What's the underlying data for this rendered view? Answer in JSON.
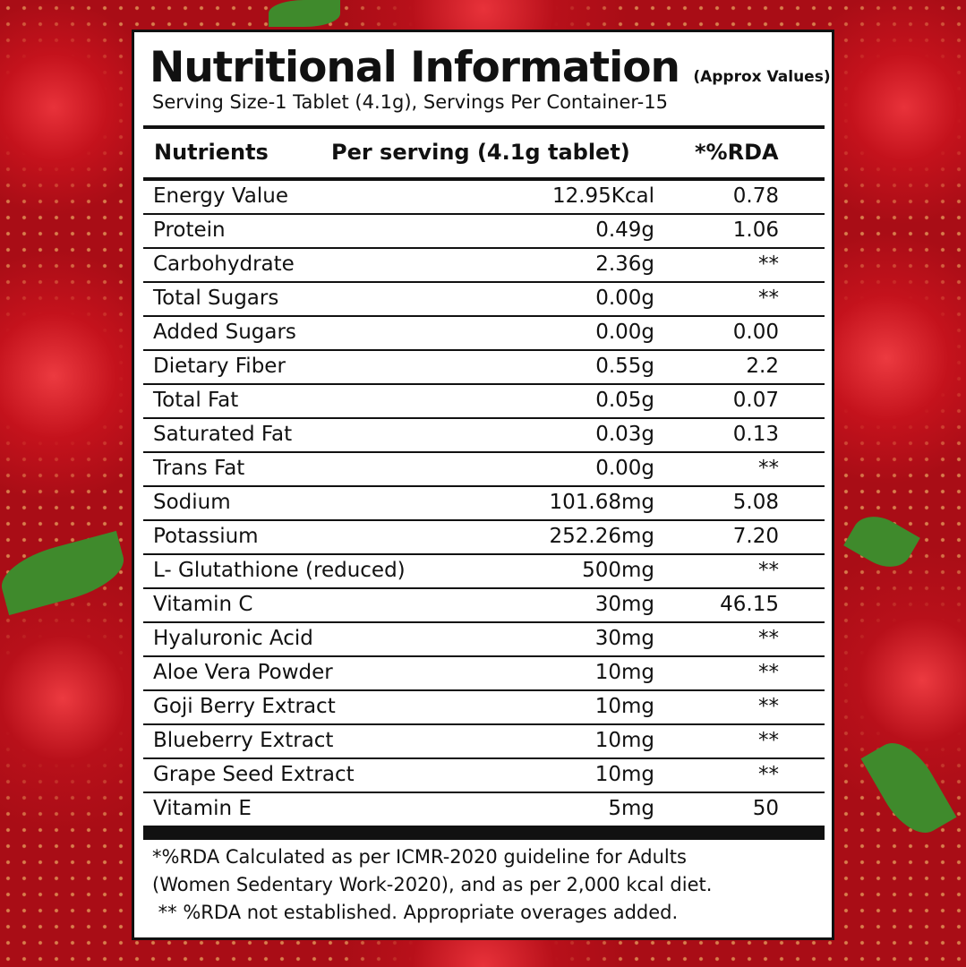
{
  "title": "Nutritional Information",
  "title_note": "(Approx Values)",
  "serving_info": "Serving Size-1 Tablet (4.1g), Servings Per Container-15",
  "columns": {
    "nutrient": "Nutrients",
    "per_serving": "Per serving (4.1g tablet)",
    "rda": "*%RDA"
  },
  "rows": [
    {
      "nutrient": "Energy Value",
      "per_serving": "12.95Kcal",
      "rda": "0.78"
    },
    {
      "nutrient": "Protein",
      "per_serving": "0.49g",
      "rda": "1.06"
    },
    {
      "nutrient": "Carbohydrate",
      "per_serving": "2.36g",
      "rda": "**"
    },
    {
      "nutrient": "Total Sugars",
      "per_serving": "0.00g",
      "rda": "**"
    },
    {
      "nutrient": "Added Sugars",
      "per_serving": "0.00g",
      "rda": "0.00"
    },
    {
      "nutrient": "Dietary Fiber",
      "per_serving": "0.55g",
      "rda": "2.2"
    },
    {
      "nutrient": "Total Fat",
      "per_serving": "0.05g",
      "rda": "0.07"
    },
    {
      "nutrient": "Saturated Fat",
      "per_serving": "0.03g",
      "rda": "0.13"
    },
    {
      "nutrient": "Trans Fat",
      "per_serving": "0.00g",
      "rda": "**"
    },
    {
      "nutrient": "Sodium",
      "per_serving": "101.68mg",
      "rda": "5.08"
    },
    {
      "nutrient": "Potassium",
      "per_serving": "252.26mg",
      "rda": "7.20"
    },
    {
      "nutrient": "L- Glutathione (reduced)",
      "per_serving": "500mg",
      "rda": "**"
    },
    {
      "nutrient": "Vitamin C",
      "per_serving": "30mg",
      "rda": "46.15"
    },
    {
      "nutrient": "Hyaluronic Acid",
      "per_serving": "30mg",
      "rda": "**"
    },
    {
      "nutrient": "Aloe Vera Powder",
      "per_serving": "10mg",
      "rda": "**"
    },
    {
      "nutrient": "Goji Berry Extract",
      "per_serving": "10mg",
      "rda": "**"
    },
    {
      "nutrient": "Blueberry Extract",
      "per_serving": "10mg",
      "rda": "**"
    },
    {
      "nutrient": "Grape Seed Extract",
      "per_serving": "10mg",
      "rda": "**"
    },
    {
      "nutrient": "Vitamin E",
      "per_serving": "5mg",
      "rda": "50"
    }
  ],
  "footnotes": [
    "*%RDA Calculated as per ICMR-2020 guideline for Adults",
    "(Women Sedentary Work-2020), and as per 2,000 kcal diet.",
    " ** %RDA not established. Appropriate overages added."
  ],
  "colors": {
    "background": "#a90d16",
    "panel": "#ffffff",
    "text": "#111111"
  }
}
